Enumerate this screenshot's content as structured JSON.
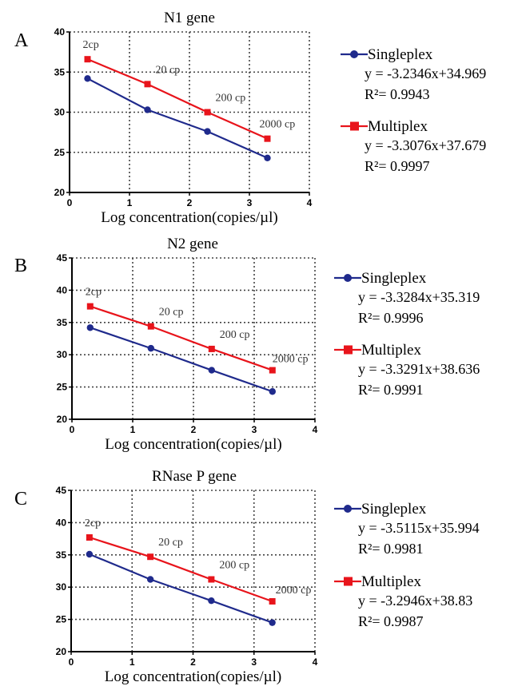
{
  "colors": {
    "singleplex": "#1f2a8c",
    "multiplex": "#e8141b",
    "grid": "#444444",
    "axis": "#000000"
  },
  "chart_data": [
    {
      "panel_label": "A",
      "type": "line",
      "title": "N1 gene",
      "xlabel": "Log concentration(copies/µl)",
      "ylabel": "",
      "xlim": [
        0,
        4
      ],
      "ylim": [
        20,
        40
      ],
      "xticks": [
        "0",
        "1",
        "2",
        "3",
        "4"
      ],
      "yticks": [
        "20",
        "25",
        "30",
        "35",
        "40"
      ],
      "grid": true,
      "legend_position": "right",
      "x": [
        0.3,
        1.3,
        2.3,
        3.3
      ],
      "point_labels": [
        "2cp",
        "20 cp",
        "200 cp",
        "2000 cp"
      ],
      "series": [
        {
          "name": "Singleplex",
          "values": [
            34.2,
            30.3,
            27.6,
            24.3
          ],
          "marker": "circle",
          "equation": "y = -3.2346x+34.969",
          "r2": "R²= 0.9943"
        },
        {
          "name": "Multiplex",
          "values": [
            36.6,
            33.5,
            30.0,
            26.7
          ],
          "marker": "square",
          "equation": "y = -3.3076x+37.679",
          "r2": "R²= 0.9997"
        }
      ]
    },
    {
      "panel_label": "B",
      "type": "line",
      "title": "N2 gene",
      "xlabel": "Log concentration(copies/µl)",
      "ylabel": "",
      "xlim": [
        0,
        4
      ],
      "ylim": [
        20,
        45
      ],
      "xticks": [
        "0",
        "1",
        "2",
        "3",
        "4"
      ],
      "yticks": [
        "20",
        "25",
        "30",
        "35",
        "40",
        "45"
      ],
      "grid": true,
      "legend_position": "right",
      "x": [
        0.3,
        1.3,
        2.3,
        3.3
      ],
      "point_labels": [
        "2cp",
        "20 cp",
        "200 cp",
        "2000 cp"
      ],
      "series": [
        {
          "name": "Singleplex",
          "values": [
            34.2,
            31.0,
            27.6,
            24.3
          ],
          "marker": "circle",
          "equation": "y = -3.3284x+35.319",
          "r2": "R²= 0.9996"
        },
        {
          "name": "Multiplex",
          "values": [
            37.5,
            34.4,
            30.9,
            27.6
          ],
          "marker": "square",
          "equation": "y = -3.3291x+38.636",
          "r2": "R²= 0.9991"
        }
      ]
    },
    {
      "panel_label": "C",
      "type": "line",
      "title": "RNase P gene",
      "xlabel": "Log concentration(copies/µl)",
      "ylabel": "",
      "xlim": [
        0,
        4
      ],
      "ylim": [
        20,
        45
      ],
      "xticks": [
        "0",
        "1",
        "2",
        "3",
        "4"
      ],
      "yticks": [
        "20",
        "25",
        "30",
        "35",
        "40",
        "45"
      ],
      "grid": true,
      "legend_position": "right",
      "x": [
        0.3,
        1.3,
        2.3,
        3.3
      ],
      "point_labels": [
        "2cp",
        "20 cp",
        "200 cp",
        "2000 cp"
      ],
      "series": [
        {
          "name": "Singleplex",
          "values": [
            35.1,
            31.2,
            27.9,
            24.5
          ],
          "marker": "circle",
          "equation": "y = -3.5115x+35.994",
          "r2": "R²= 0.9981"
        },
        {
          "name": "Multiplex",
          "values": [
            37.7,
            34.7,
            31.2,
            27.8
          ],
          "marker": "square",
          "equation": "y = -3.2946x+38.83",
          "r2": "R²= 0.9987"
        }
      ]
    }
  ]
}
